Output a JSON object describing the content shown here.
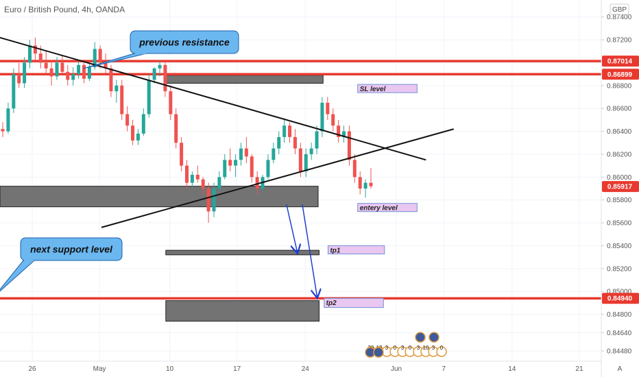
{
  "chart_data": {
    "type": "candlestick",
    "title": "Euro / British Pound, 4h, OANDA",
    "currency": "GBP",
    "corner_label": "A",
    "ylim": [
      0.8442,
      0.875
    ],
    "y_ticks": [
      "0.87400",
      "0.87200",
      "0.87000",
      "0.86800",
      "0.86600",
      "0.86400",
      "0.86200",
      "0.86000",
      "0.85800",
      "0.85600",
      "0.85400",
      "0.85200",
      "0.85000",
      "0.84800",
      "0.84640",
      "0.84480"
    ],
    "x_ticks": [
      "26",
      "May",
      "10",
      "17",
      "24",
      "Jun",
      "7",
      "14",
      "21"
    ],
    "price_tags": [
      {
        "text": "0.87014",
        "price": 0.87014
      },
      {
        "text": "0.86899",
        "price": 0.86899
      },
      {
        "text": "0.85917",
        "price": 0.85917
      },
      {
        "text": "0.84940",
        "price": 0.8494
      }
    ],
    "resistance_lines": [
      0.87014,
      0.86899,
      0.8494
    ],
    "zones": [
      {
        "name": "sl-zone",
        "day_from": 13.5,
        "day_to": 29.4,
        "top": 0.8689,
        "bottom": 0.8682
      },
      {
        "name": "entry-zone",
        "day_from": -4.5,
        "day_to": 28.9,
        "top": 0.8592,
        "bottom": 0.8574
      },
      {
        "name": "tp1-zone",
        "day_from": 13.5,
        "day_to": 29.0,
        "top": 0.8536,
        "bottom": 0.8532
      },
      {
        "name": "tp2-zone",
        "day_from": 13.5,
        "day_to": 29.0,
        "top": 0.8492,
        "bottom": 0.8474
      }
    ],
    "trendlines": [
      {
        "name": "descending-trendline",
        "d1": -4.5,
        "p1": 0.8725,
        "d2": 39.8,
        "p2": 0.8615
      },
      {
        "name": "ascending-trendline",
        "d1": 7.0,
        "p1": 0.8556,
        "d2": 42.6,
        "p2": 0.8642
      }
    ],
    "arrows": [
      {
        "name": "tp1-arrow",
        "d1": 25.7,
        "p1": 0.8576,
        "d2": 26.8,
        "p2": 0.8534
      },
      {
        "name": "tp2-arrow",
        "d1": 27.3,
        "p1": 0.8576,
        "d2": 28.8,
        "p2": 0.8495
      }
    ],
    "labels": [
      {
        "name": "sl-level-label",
        "text": "SL level",
        "day_from": 32.9,
        "day_to": 38.9,
        "top": 0.8681,
        "bottom": 0.8675
      },
      {
        "name": "entry-level-label",
        "text": "entery level",
        "day_from": 32.9,
        "day_to": 38.9,
        "top": 0.8577,
        "bottom": 0.8571
      },
      {
        "name": "tp1-label",
        "text": "tp1",
        "day_from": 29.9,
        "day_to": 35.6,
        "top": 0.854,
        "bottom": 0.8533
      },
      {
        "name": "tp2-label",
        "text": "tp2",
        "day_from": 29.5,
        "day_to": 35.5,
        "top": 0.8494,
        "bottom": 0.8486
      }
    ],
    "callouts": [
      {
        "name": "previous-resistance-callout",
        "text": "previous resistance",
        "pointer_day": 5.2,
        "pointer_price": 0.8695
      },
      {
        "name": "next-support-callout",
        "text": "next support level",
        "pointer_day": -3.8,
        "pointer_price": 0.8496
      }
    ],
    "events": [
      "20",
      "12",
      "3",
      "0",
      "3",
      "0",
      "3",
      "10",
      "3",
      "0"
    ],
    "candles": [
      {
        "o": 0.8642,
        "h": 0.8648,
        "l": 0.8635,
        "c": 0.864
      },
      {
        "o": 0.864,
        "h": 0.8665,
        "l": 0.8638,
        "c": 0.866
      },
      {
        "o": 0.866,
        "h": 0.8695,
        "l": 0.8656,
        "c": 0.869
      },
      {
        "o": 0.869,
        "h": 0.87,
        "l": 0.8678,
        "c": 0.8682
      },
      {
        "o": 0.8682,
        "h": 0.8705,
        "l": 0.8678,
        "c": 0.87
      },
      {
        "o": 0.87,
        "h": 0.872,
        "l": 0.8695,
        "c": 0.8715
      },
      {
        "o": 0.8715,
        "h": 0.8722,
        "l": 0.8702,
        "c": 0.8708
      },
      {
        "o": 0.8708,
        "h": 0.8715,
        "l": 0.8695,
        "c": 0.87
      },
      {
        "o": 0.87,
        "h": 0.871,
        "l": 0.869,
        "c": 0.8695
      },
      {
        "o": 0.8695,
        "h": 0.8702,
        "l": 0.868,
        "c": 0.8688
      },
      {
        "o": 0.8688,
        "h": 0.8705,
        "l": 0.8685,
        "c": 0.87
      },
      {
        "o": 0.87,
        "h": 0.8706,
        "l": 0.869,
        "c": 0.8692
      },
      {
        "o": 0.8692,
        "h": 0.8698,
        "l": 0.868,
        "c": 0.8685
      },
      {
        "o": 0.8685,
        "h": 0.8696,
        "l": 0.868,
        "c": 0.869
      },
      {
        "o": 0.869,
        "h": 0.8702,
        "l": 0.8686,
        "c": 0.8698
      },
      {
        "o": 0.8698,
        "h": 0.87,
        "l": 0.8682,
        "c": 0.8686
      },
      {
        "o": 0.8686,
        "h": 0.87,
        "l": 0.8684,
        "c": 0.8696
      },
      {
        "o": 0.8696,
        "h": 0.8718,
        "l": 0.8694,
        "c": 0.8712
      },
      {
        "o": 0.8712,
        "h": 0.8715,
        "l": 0.8695,
        "c": 0.87
      },
      {
        "o": 0.87,
        "h": 0.8708,
        "l": 0.869,
        "c": 0.8695
      },
      {
        "o": 0.8695,
        "h": 0.8698,
        "l": 0.867,
        "c": 0.8675
      },
      {
        "o": 0.8675,
        "h": 0.8685,
        "l": 0.8665,
        "c": 0.868
      },
      {
        "o": 0.868,
        "h": 0.8685,
        "l": 0.865,
        "c": 0.8655
      },
      {
        "o": 0.8655,
        "h": 0.8662,
        "l": 0.864,
        "c": 0.8645
      },
      {
        "o": 0.8645,
        "h": 0.865,
        "l": 0.8628,
        "c": 0.8632
      },
      {
        "o": 0.8632,
        "h": 0.8642,
        "l": 0.8628,
        "c": 0.8638
      },
      {
        "o": 0.8638,
        "h": 0.866,
        "l": 0.8636,
        "c": 0.8655
      },
      {
        "o": 0.8655,
        "h": 0.869,
        "l": 0.8652,
        "c": 0.8685
      },
      {
        "o": 0.8685,
        "h": 0.8696,
        "l": 0.8682,
        "c": 0.8695
      },
      {
        "o": 0.8695,
        "h": 0.8702,
        "l": 0.8688,
        "c": 0.8698
      },
      {
        "o": 0.8698,
        "h": 0.87,
        "l": 0.867,
        "c": 0.8675
      },
      {
        "o": 0.8675,
        "h": 0.868,
        "l": 0.865,
        "c": 0.8655
      },
      {
        "o": 0.8655,
        "h": 0.866,
        "l": 0.8625,
        "c": 0.863
      },
      {
        "o": 0.863,
        "h": 0.8635,
        "l": 0.8605,
        "c": 0.861
      },
      {
        "o": 0.861,
        "h": 0.8615,
        "l": 0.859,
        "c": 0.8595
      },
      {
        "o": 0.8595,
        "h": 0.8605,
        "l": 0.859,
        "c": 0.8602
      },
      {
        "o": 0.8602,
        "h": 0.861,
        "l": 0.8595,
        "c": 0.8598
      },
      {
        "o": 0.8598,
        "h": 0.86,
        "l": 0.8585,
        "c": 0.859
      },
      {
        "o": 0.859,
        "h": 0.8595,
        "l": 0.856,
        "c": 0.857
      },
      {
        "o": 0.857,
        "h": 0.8595,
        "l": 0.8565,
        "c": 0.859
      },
      {
        "o": 0.859,
        "h": 0.8605,
        "l": 0.8588,
        "c": 0.86
      },
      {
        "o": 0.86,
        "h": 0.862,
        "l": 0.8598,
        "c": 0.8615
      },
      {
        "o": 0.8615,
        "h": 0.8625,
        "l": 0.8605,
        "c": 0.861
      },
      {
        "o": 0.861,
        "h": 0.862,
        "l": 0.86,
        "c": 0.8615
      },
      {
        "o": 0.8615,
        "h": 0.863,
        "l": 0.861,
        "c": 0.8625
      },
      {
        "o": 0.8625,
        "h": 0.8635,
        "l": 0.8612,
        "c": 0.8618
      },
      {
        "o": 0.8618,
        "h": 0.862,
        "l": 0.8595,
        "c": 0.86
      },
      {
        "o": 0.86,
        "h": 0.8605,
        "l": 0.8585,
        "c": 0.859
      },
      {
        "o": 0.859,
        "h": 0.8602,
        "l": 0.8588,
        "c": 0.86
      },
      {
        "o": 0.86,
        "h": 0.862,
        "l": 0.8598,
        "c": 0.8615
      },
      {
        "o": 0.8615,
        "h": 0.863,
        "l": 0.8612,
        "c": 0.8625
      },
      {
        "o": 0.8625,
        "h": 0.864,
        "l": 0.862,
        "c": 0.8635
      },
      {
        "o": 0.8635,
        "h": 0.865,
        "l": 0.863,
        "c": 0.8645
      },
      {
        "o": 0.8645,
        "h": 0.8648,
        "l": 0.863,
        "c": 0.8635
      },
      {
        "o": 0.8635,
        "h": 0.8642,
        "l": 0.862,
        "c": 0.8625
      },
      {
        "o": 0.8625,
        "h": 0.863,
        "l": 0.86,
        "c": 0.8605
      },
      {
        "o": 0.8605,
        "h": 0.8625,
        "l": 0.86,
        "c": 0.862
      },
      {
        "o": 0.862,
        "h": 0.863,
        "l": 0.8615,
        "c": 0.8625
      },
      {
        "o": 0.8625,
        "h": 0.8645,
        "l": 0.862,
        "c": 0.864
      },
      {
        "o": 0.864,
        "h": 0.867,
        "l": 0.8635,
        "c": 0.8665
      },
      {
        "o": 0.8665,
        "h": 0.867,
        "l": 0.865,
        "c": 0.8655
      },
      {
        "o": 0.8655,
        "h": 0.866,
        "l": 0.864,
        "c": 0.8645
      },
      {
        "o": 0.8645,
        "h": 0.865,
        "l": 0.863,
        "c": 0.8635
      },
      {
        "o": 0.8635,
        "h": 0.8645,
        "l": 0.863,
        "c": 0.864
      },
      {
        "o": 0.864,
        "h": 0.8645,
        "l": 0.861,
        "c": 0.8615
      },
      {
        "o": 0.8615,
        "h": 0.862,
        "l": 0.8595,
        "c": 0.86
      },
      {
        "o": 0.86,
        "h": 0.8605,
        "l": 0.8585,
        "c": 0.859
      },
      {
        "o": 0.859,
        "h": 0.8598,
        "l": 0.8582,
        "c": 0.8595
      },
      {
        "o": 0.8595,
        "h": 0.8608,
        "l": 0.859,
        "c": 0.8592
      }
    ]
  }
}
